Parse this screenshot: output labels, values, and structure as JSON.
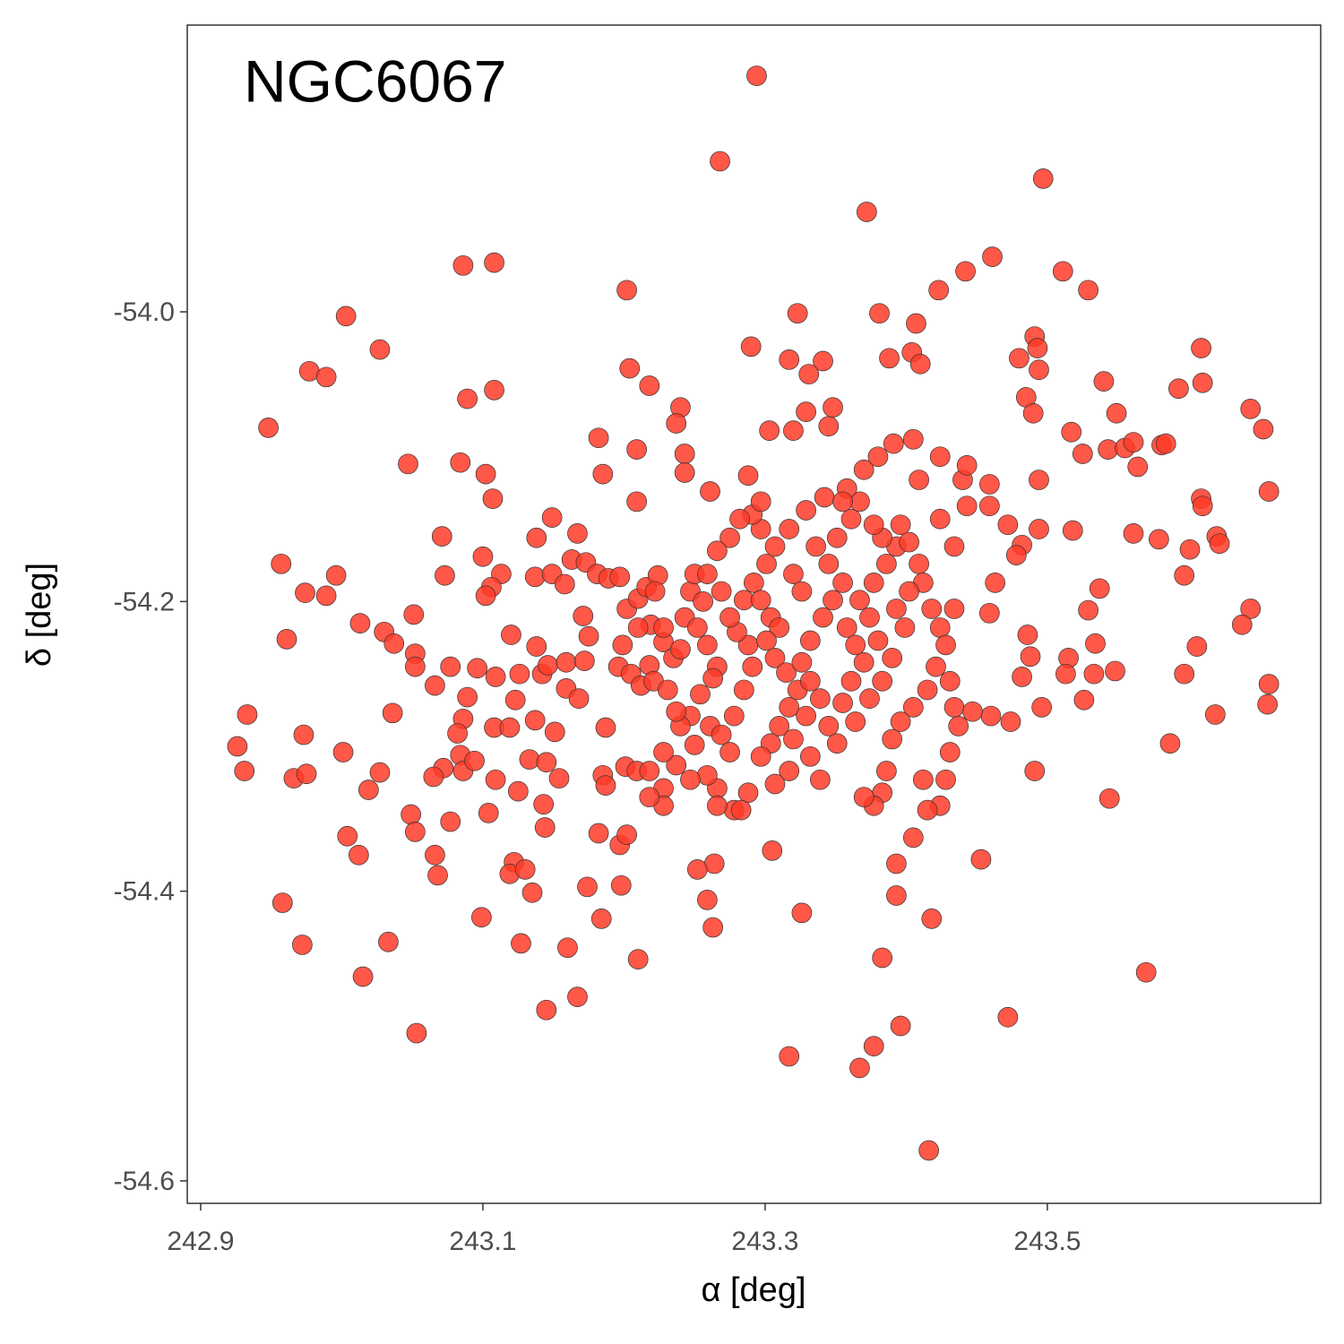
{
  "chart_data": {
    "type": "scatter",
    "title": "NGC6067",
    "xlabel": "α [deg]",
    "ylabel": "δ [deg]",
    "color": "#ff3b28",
    "xlim": [
      242.8905,
      243.6937
    ],
    "ylim": [
      -54.6155,
      -53.802
    ],
    "xticks": [
      242.9,
      243.1,
      243.3,
      243.5
    ],
    "yticks": [
      {
        "value": -54,
        "label": "-54.0"
      },
      -54.2,
      -54.4,
      -54.6
    ],
    "x": [
      243.294,
      243.268,
      243.497,
      243.372,
      243.086,
      243.108,
      243.202,
      243.323,
      243.003,
      243.381,
      243.423,
      243.442,
      243.461,
      243.511,
      243.529,
      243.027,
      242.977,
      242.989,
      242.948,
      243.29,
      243.317,
      243.341,
      243.331,
      243.407,
      243.404,
      243.41,
      243.388,
      243.204,
      243.218,
      243.089,
      243.108,
      243.491,
      243.493,
      243.494,
      243.48,
      243.485,
      243.49,
      243.54,
      243.593,
      243.609,
      243.61,
      243.644,
      243.653,
      243.657,
      243.549,
      243.517,
      243.525,
      243.543,
      243.555,
      243.561,
      243.564,
      243.581,
      243.584,
      243.609,
      243.61,
      243.62,
      243.622,
      243.601,
      243.597,
      243.579,
      243.561,
      243.518,
      243.644,
      243.638,
      243.606,
      243.597,
      243.657,
      243.656,
      243.619,
      243.587,
      243.529,
      243.537,
      243.534,
      243.533,
      243.548,
      243.515,
      243.513,
      243.526,
      243.496,
      243.491,
      243.544,
      243.57,
      243.486,
      243.488,
      243.482,
      243.474,
      243.46,
      243.453,
      243.472,
      242.933,
      242.926,
      242.931,
      242.958,
      242.972,
      243.015,
      243.033,
      243.053,
      242.973,
      242.966,
      242.975,
      243.001,
      243.019,
      243.027,
      243.004,
      243.012,
      243.049,
      243.052,
      243.066,
      243.068,
      243.077,
      243.099,
      243.127,
      243.145,
      243.16,
      243.167,
      243.122,
      243.119,
      243.13,
      243.135,
      243.174,
      243.184,
      243.198,
      243.21,
      242.957,
      242.974,
      242.989,
      242.996,
      242.961,
      243.013,
      243.03,
      243.037,
      243.051,
      243.052,
      243.052,
      243.036,
      243.066,
      243.047,
      243.071,
      243.073,
      243.084,
      243.102,
      243.107,
      243.1,
      243.113,
      243.106,
      243.102,
      243.12,
      243.077,
      243.096,
      243.109,
      243.089,
      243.086,
      243.082,
      243.084,
      243.086,
      243.094,
      243.072,
      243.065,
      243.108,
      243.123,
      243.119,
      243.126,
      243.109,
      243.104,
      243.125,
      243.137,
      243.133,
      243.145,
      243.143,
      243.144,
      243.154,
      243.151,
      243.138,
      243.149,
      243.137,
      243.149,
      243.138,
      243.142,
      243.146,
      243.159,
      243.159,
      243.168,
      243.167,
      243.163,
      243.173,
      243.158,
      243.171,
      243.175,
      243.172,
      243.181,
      243.189,
      243.197,
      243.182,
      243.185,
      243.209,
      243.209,
      243.24,
      243.237,
      243.243,
      243.243,
      243.261,
      243.187,
      243.185,
      243.187,
      243.182,
      243.197,
      243.202,
      243.201,
      243.209,
      243.202,
      243.21,
      243.216,
      243.224,
      243.222,
      243.219,
      243.21,
      243.199,
      243.196,
      243.205,
      243.212,
      243.218,
      243.221,
      243.231,
      243.228,
      243.228,
      243.235,
      243.24,
      243.243,
      243.247,
      243.25,
      243.256,
      243.252,
      243.259,
      243.266,
      243.263,
      243.254,
      243.247,
      243.24,
      243.25,
      243.261,
      243.269,
      243.275,
      243.278,
      243.285,
      243.291,
      243.288,
      243.28,
      243.275,
      243.285,
      243.292,
      243.301,
      243.307,
      243.297,
      243.291,
      243.282,
      243.275,
      243.266,
      243.259,
      243.269,
      243.297,
      243.304,
      243.31,
      243.301,
      243.307,
      243.315,
      243.323,
      243.317,
      243.31,
      243.304,
      243.32,
      243.329,
      243.339,
      243.332,
      243.326,
      243.332,
      243.341,
      243.348,
      243.355,
      243.345,
      243.336,
      243.351,
      243.361,
      243.367,
      243.358,
      243.342,
      243.329,
      243.317,
      243.32,
      243.326,
      243.358,
      243.364,
      243.37,
      243.361,
      243.355,
      243.345,
      243.351,
      243.364,
      243.374,
      243.383,
      243.39,
      243.38,
      243.374,
      243.367,
      243.377,
      243.386,
      243.393,
      243.383,
      243.377,
      243.396,
      243.402,
      243.409,
      243.412,
      243.402,
      243.393,
      243.399,
      243.418,
      243.424,
      243.428,
      243.421,
      243.431,
      243.415,
      243.405,
      243.396,
      243.39,
      243.386,
      243.383,
      243.377,
      243.37,
      243.339,
      243.332,
      243.317,
      243.307,
      243.297,
      243.288,
      243.278,
      243.266,
      243.259,
      243.247,
      243.237,
      243.228,
      243.228,
      243.218,
      243.218,
      243.228,
      243.237,
      243.424,
      243.434,
      243.443,
      243.44,
      243.459,
      243.472,
      243.482,
      243.494,
      243.478,
      243.459,
      243.463,
      243.434,
      243.434,
      243.437,
      243.447,
      243.431,
      243.428,
      243.424,
      243.415,
      243.405,
      243.418,
      243.393,
      243.393,
      243.383,
      243.396,
      243.377,
      243.367,
      243.317,
      243.326,
      243.305,
      243.283,
      243.264,
      243.263,
      243.259,
      243.252,
      243.266,
      243.288,
      243.303,
      243.32,
      243.345,
      243.37,
      243.38,
      243.391,
      243.405,
      243.409,
      243.424,
      243.443,
      243.348,
      243.329,
      243.297,
      243.355,
      243.459,
      243.494,
      243.416,
      243.412
    ],
    "y": [
      -53.837,
      -53.896,
      -53.908,
      -53.931,
      -53.968,
      -53.966,
      -53.985,
      -54.001,
      -54.003,
      -54.001,
      -53.985,
      -53.972,
      -53.962,
      -53.972,
      -53.985,
      -54.026,
      -54.041,
      -54.045,
      -54.08,
      -54.024,
      -54.033,
      -54.034,
      -54.043,
      -54.008,
      -54.028,
      -54.036,
      -54.032,
      -54.039,
      -54.051,
      -54.06,
      -54.054,
      -54.017,
      -54.025,
      -54.04,
      -54.032,
      -54.059,
      -54.07,
      -54.048,
      -54.053,
      -54.025,
      -54.049,
      -54.067,
      -54.081,
      -54.124,
      -54.07,
      -54.083,
      -54.098,
      -54.095,
      -54.094,
      -54.09,
      -54.107,
      -54.092,
      -54.091,
      -54.129,
      -54.134,
      -54.155,
      -54.16,
      -54.164,
      -54.182,
      -54.157,
      -54.153,
      -54.151,
      -54.205,
      -54.216,
      -54.231,
      -54.25,
      -54.257,
      -54.271,
      -54.278,
      -54.298,
      -54.206,
      -54.191,
      -54.229,
      -54.25,
      -54.248,
      -54.239,
      -54.25,
      -54.268,
      -54.273,
      -54.317,
      -54.336,
      -54.456,
      -54.223,
      -54.238,
      -54.252,
      -54.283,
      -54.279,
      -54.378,
      -54.487,
      -54.278,
      -54.3,
      -54.317,
      -54.408,
      -54.437,
      -54.459,
      -54.435,
      -54.498,
      -54.292,
      -54.322,
      -54.319,
      -54.304,
      -54.33,
      -54.318,
      -54.362,
      -54.375,
      -54.347,
      -54.359,
      -54.375,
      -54.389,
      -54.352,
      -54.418,
      -54.436,
      -54.482,
      -54.439,
      -54.473,
      -54.38,
      -54.388,
      -54.385,
      -54.401,
      -54.397,
      -54.419,
      -54.396,
      -54.447,
      -54.174,
      -54.194,
      -54.196,
      -54.182,
      -54.226,
      -54.215,
      -54.221,
      -54.229,
      -54.209,
      -54.236,
      -54.245,
      -54.277,
      -54.258,
      -54.105,
      -54.155,
      -54.182,
      -54.104,
      -54.112,
      -54.129,
      -54.169,
      -54.181,
      -54.19,
      -54.196,
      -54.223,
      -54.245,
      -54.246,
      -54.252,
      -54.266,
      -54.281,
      -54.291,
      -54.306,
      -54.317,
      -54.31,
      -54.315,
      -54.321,
      -54.287,
      -54.268,
      -54.287,
      -54.25,
      -54.323,
      -54.346,
      -54.331,
      -54.282,
      -54.309,
      -54.311,
      -54.34,
      -54.356,
      -54.322,
      -54.29,
      -54.156,
      -54.142,
      -54.183,
      -54.181,
      -54.231,
      -54.25,
      -54.244,
      -54.242,
      -54.26,
      -54.267,
      -54.153,
      -54.171,
      -54.173,
      -54.188,
      -54.21,
      -54.224,
      -54.241,
      -54.181,
      -54.184,
      -54.183,
      -54.087,
      -54.112,
      -54.095,
      -54.131,
      -54.066,
      -54.077,
      -54.098,
      -54.111,
      -54.124,
      -54.287,
      -54.32,
      -54.327,
      -54.36,
      -54.368,
      -54.361,
      -54.314,
      -54.317,
      -54.205,
      -54.198,
      -54.19,
      -54.182,
      -54.193,
      -54.216,
      -54.218,
      -54.23,
      -54.245,
      -54.25,
      -54.258,
      -54.244,
      -54.255,
      -54.261,
      -54.228,
      -54.218,
      -54.239,
      -54.233,
      -54.211,
      -54.193,
      -54.181,
      -54.2,
      -54.218,
      -54.23,
      -54.245,
      -54.253,
      -54.264,
      -54.279,
      -54.286,
      -54.299,
      -54.286,
      -54.292,
      -54.304,
      -54.279,
      -54.261,
      -54.245,
      -54.23,
      -54.221,
      -54.211,
      -54.199,
      -54.187,
      -54.174,
      -54.162,
      -54.15,
      -54.14,
      -54.143,
      -54.156,
      -54.165,
      -54.181,
      -54.193,
      -54.199,
      -54.211,
      -54.218,
      -54.227,
      -54.239,
      -54.249,
      -54.261,
      -54.273,
      -54.286,
      -54.298,
      -54.295,
      -54.279,
      -54.267,
      -54.255,
      -54.242,
      -54.227,
      -54.211,
      -54.199,
      -54.187,
      -54.174,
      -54.162,
      -54.156,
      -54.143,
      -54.131,
      -54.122,
      -54.128,
      -54.137,
      -54.15,
      -54.181,
      -54.193,
      -54.218,
      -54.23,
      -54.242,
      -54.255,
      -54.27,
      -54.286,
      -54.298,
      -54.283,
      -54.267,
      -54.255,
      -54.239,
      -54.227,
      -54.211,
      -54.199,
      -54.187,
      -54.174,
      -54.162,
      -54.156,
      -54.147,
      -54.147,
      -54.159,
      -54.174,
      -54.187,
      -54.193,
      -54.205,
      -54.218,
      -54.205,
      -54.218,
      -54.23,
      -54.245,
      -54.255,
      -54.261,
      -54.273,
      -54.283,
      -54.295,
      -54.317,
      -54.332,
      -54.341,
      -54.335,
      -54.323,
      -54.307,
      -54.317,
      -54.326,
      -54.307,
      -54.332,
      -54.344,
      -54.329,
      -54.32,
      -54.323,
      -54.313,
      -54.329,
      -54.341,
      -54.335,
      -54.317,
      -54.304,
      -54.276,
      -54.143,
      -54.162,
      -54.134,
      -54.116,
      -54.134,
      -54.147,
      -54.161,
      -54.15,
      -54.168,
      -54.208,
      -54.187,
      -54.205,
      -54.273,
      -54.286,
      -54.276,
      -54.304,
      -54.323,
      -54.341,
      -54.344,
      -54.363,
      -54.419,
      -54.381,
      -54.403,
      -54.446,
      -54.493,
      -54.507,
      -54.522,
      -54.514,
      -54.415,
      -54.372,
      -54.344,
      -54.381,
      -54.425,
      -54.406,
      -54.385,
      -54.341,
      -54.113,
      -54.082,
      -54.082,
      -54.079,
      -54.109,
      -54.1,
      -54.091,
      -54.088,
      -54.116,
      -54.1,
      -54.106,
      -54.066,
      -54.069,
      -54.131,
      -54.131,
      -54.119,
      -54.116,
      -54.579,
      -54.323
    ]
  }
}
